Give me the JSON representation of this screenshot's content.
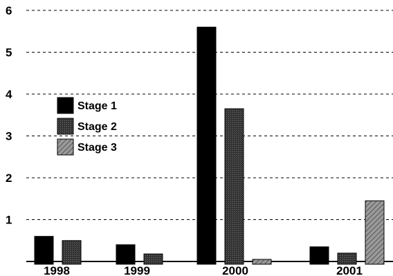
{
  "chart_data": {
    "type": "bar",
    "categories": [
      "1998",
      "1999",
      "2000",
      "2001"
    ],
    "series": [
      {
        "name": "Stage 1",
        "values": [
          0.6,
          0.4,
          5.6,
          0.35
        ]
      },
      {
        "name": "Stage 2",
        "values": [
          0.5,
          0.18,
          3.65,
          0.2
        ]
      },
      {
        "name": "Stage 3",
        "values": [
          0.0,
          0.0,
          0.05,
          1.45
        ]
      }
    ],
    "ylim": [
      0,
      6
    ],
    "yticks": [
      "1",
      "2",
      "3",
      "4",
      "5",
      "6"
    ],
    "grid": true,
    "legend_position": "left",
    "colors": {
      "Stage 1": "#000000",
      "Stage 2": "#3a3a3a",
      "Stage 3": "#8c8c8c"
    }
  }
}
